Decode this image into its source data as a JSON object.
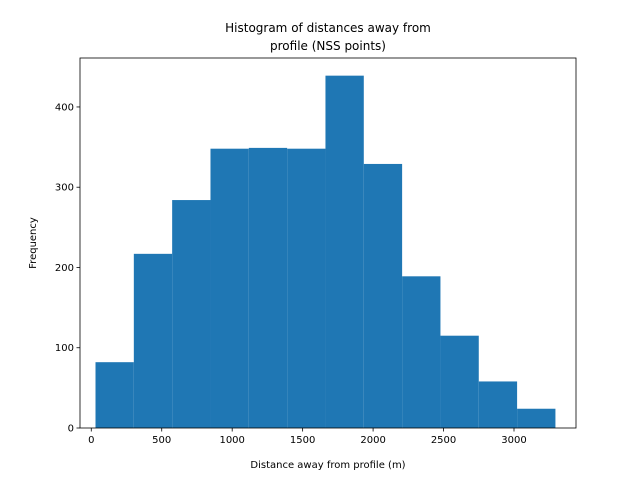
{
  "chart_data": {
    "type": "bar",
    "subtype": "histogram",
    "title_lines": [
      "Histogram of distances away from",
      "profile (NSS points)"
    ],
    "xlabel": "Distance away from profile (m)",
    "ylabel": "Frequency",
    "bin_edges": [
      30,
      302,
      574,
      846,
      1118,
      1390,
      1662,
      1934,
      2206,
      2478,
      2750,
      3022,
      3294
    ],
    "values": [
      82,
      217,
      284,
      348,
      349,
      348,
      439,
      329,
      189,
      115,
      58,
      24
    ],
    "xlim": [
      -80,
      3440
    ],
    "ylim": [
      0,
      461
    ],
    "xticks": [
      0,
      500,
      1000,
      1500,
      2000,
      2500,
      3000
    ],
    "yticks": [
      0,
      100,
      200,
      300,
      400
    ],
    "bar_color": "#1f77b4",
    "grid": false,
    "legend": "none"
  }
}
